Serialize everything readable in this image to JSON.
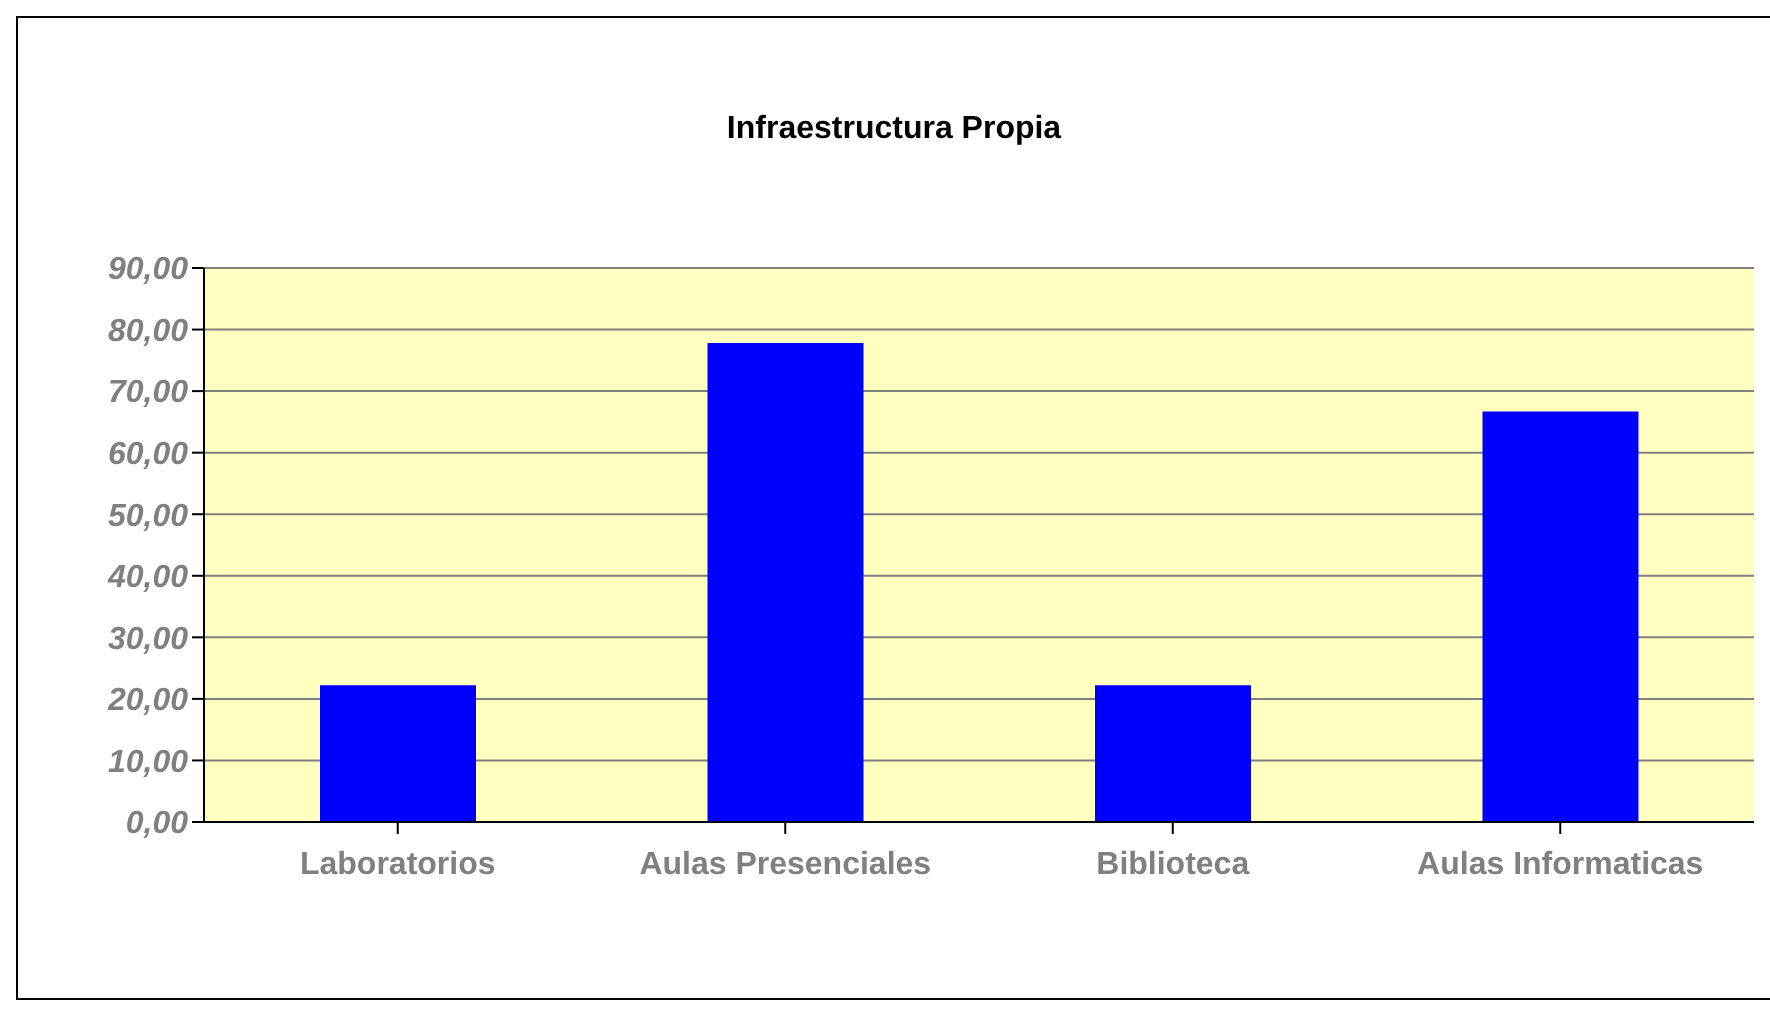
{
  "chart_data": {
    "type": "bar",
    "title": "Infraestructura Propia",
    "categories": [
      "Laboratorios",
      "Aulas Presenciales",
      "Biblioteca",
      "Aulas Informaticas"
    ],
    "values": [
      22.2,
      77.8,
      22.2,
      66.7
    ],
    "color": "#0000ff",
    "ylim": [
      0,
      90
    ],
    "yticks": [
      {
        "value": 0,
        "label": "0,00"
      },
      {
        "value": 10,
        "label": "10,00"
      },
      {
        "value": 20,
        "label": "20,00"
      },
      {
        "value": 30,
        "label": "30,00"
      },
      {
        "value": 40,
        "label": "40,00"
      },
      {
        "value": 50,
        "label": "50,00"
      },
      {
        "value": 60,
        "label": "60,00"
      },
      {
        "value": 70,
        "label": "70,00"
      },
      {
        "value": 80,
        "label": "80,00"
      },
      {
        "value": 90,
        "label": "90,00"
      }
    ],
    "grid": "y",
    "legend": false
  }
}
